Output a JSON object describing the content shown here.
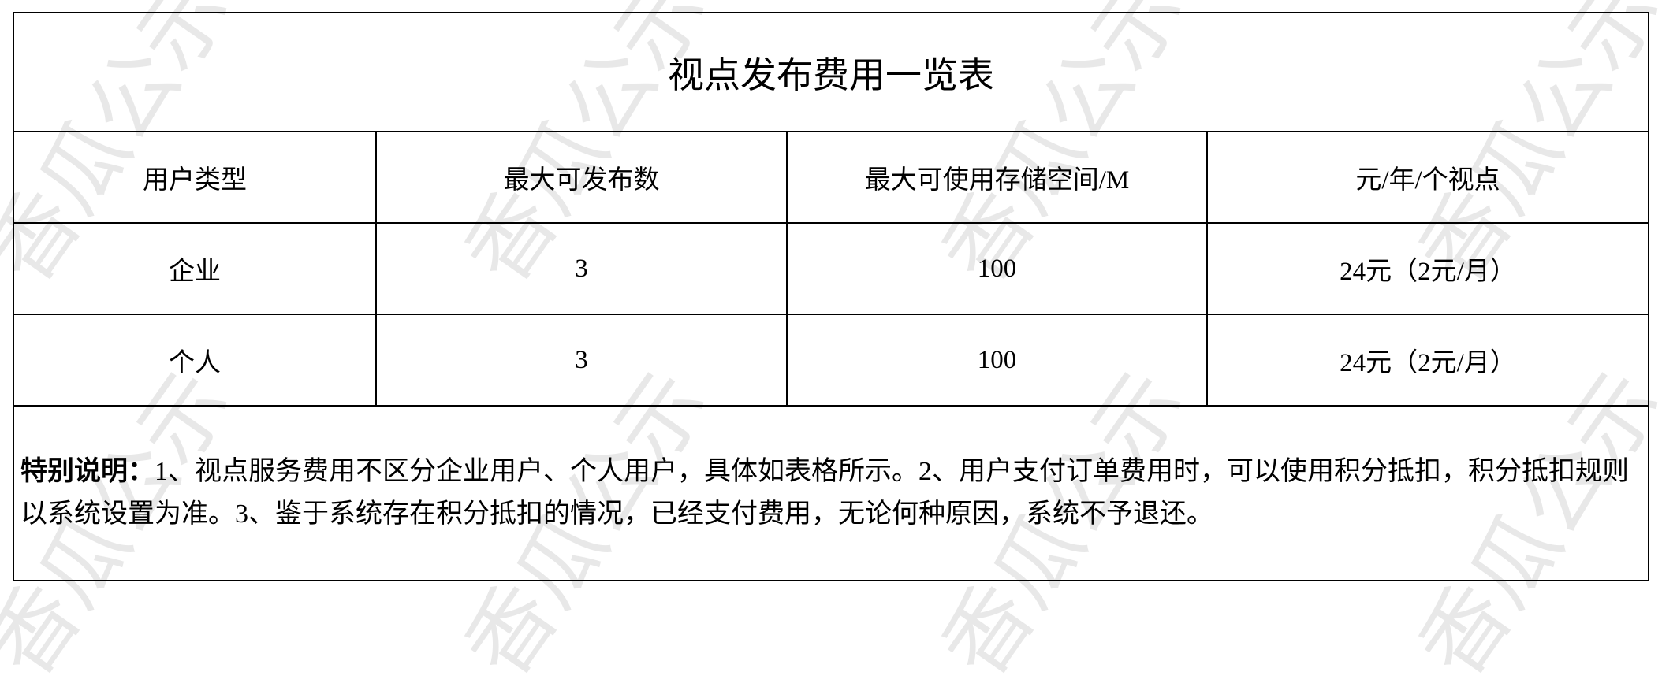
{
  "title": "视点发布费用一览表",
  "headers": [
    "用户类型",
    "最大可发布数",
    "最大可使用存储空间/M",
    "元/年/个视点"
  ],
  "rows": [
    [
      "企业",
      "3",
      "100",
      "24元（2元/月）"
    ],
    [
      "个人",
      "3",
      "100",
      "24元（2元/月）"
    ]
  ],
  "note": {
    "label": "特别说明：",
    "text": "1、视点服务费用不区分企业用户、个人用户，具体如表格所示。2、用户支付订单费用时，可以使用积分抵扣，积分抵扣规则以系统设置为准。3、鉴于系统存在积分抵扣的情况，已经支付费用，无论何种原因，系统不予退还。"
  },
  "watermark": "香瓜公示"
}
